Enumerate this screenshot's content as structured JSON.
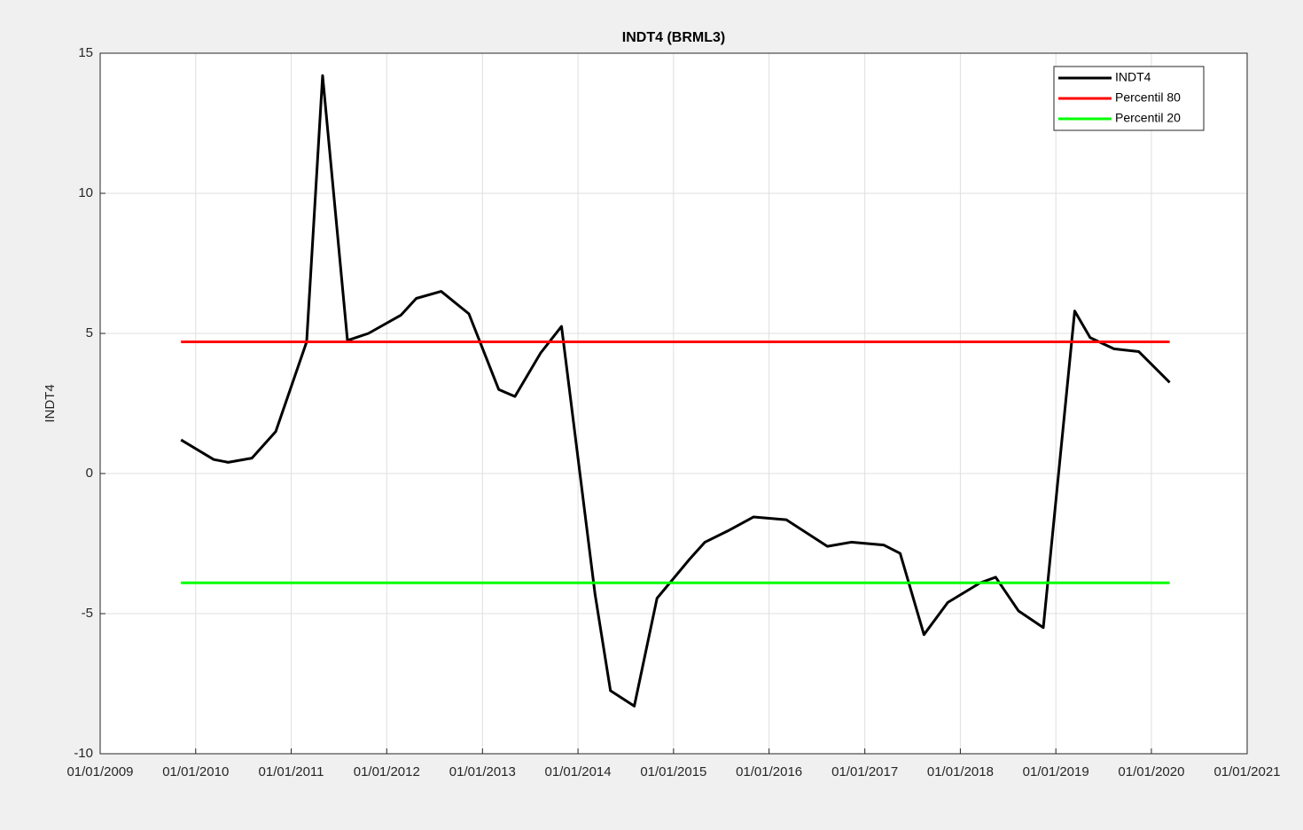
{
  "chart_data": {
    "type": "line",
    "title": "INDT4 (BRML3)",
    "y_label": "INDT4",
    "x": [
      "2009-11-06",
      "2010-03-11",
      "2010-05-05",
      "2010-08-04",
      "2010-11-03",
      "2011-03-01",
      "2011-05-01",
      "2011-08-04",
      "2011-10-23",
      "2012-02-24",
      "2012-04-23",
      "2012-07-27",
      "2012-11-10",
      "2013-03-04",
      "2013-05-05",
      "2013-08-11",
      "2013-10-30",
      "2014-03-07",
      "2014-05-05",
      "2014-08-04",
      "2014-10-30",
      "2015-03-04",
      "2015-05-01",
      "2015-07-27",
      "2015-11-03",
      "2016-03-07",
      "2016-08-11",
      "2016-11-10",
      "2017-03-14",
      "2017-05-16",
      "2017-08-15",
      "2017-11-14",
      "2018-03-18",
      "2018-05-16",
      "2018-08-11",
      "2018-11-14",
      "2019-03-14",
      "2019-05-12",
      "2019-08-11",
      "2019-11-14",
      "2020-03-11"
    ],
    "series": [
      {
        "name": "INDT4",
        "color": "#000000",
        "values": [
          1.2,
          0.5,
          0.4,
          0.55,
          1.5,
          4.7,
          14.2,
          4.75,
          5.0,
          5.65,
          6.25,
          6.5,
          5.7,
          3.0,
          2.75,
          4.3,
          5.25,
          -4.3,
          -7.75,
          -8.3,
          -4.45,
          -3.05,
          -2.45,
          -2.05,
          -1.55,
          -1.65,
          -2.6,
          -2.45,
          -2.55,
          -2.85,
          -5.75,
          -4.6,
          -3.9,
          -3.7,
          -4.9,
          -5.5,
          5.8,
          4.85,
          4.45,
          4.35,
          3.25
        ]
      },
      {
        "name": "Percentil 80",
        "color": "#ff0000",
        "x": [
          "2009-11-06",
          "2020-03-11"
        ],
        "values": [
          4.7,
          4.7
        ]
      },
      {
        "name": "Percentil 20",
        "color": "#00ff00",
        "x": [
          "2009-11-06",
          "2020-03-11"
        ],
        "values": [
          -3.9,
          -3.9
        ]
      }
    ],
    "xlim": [
      "2009-01-01",
      "2021-01-01"
    ],
    "xticks": [
      {
        "value": "2009-01-01",
        "label": "01/01/2009"
      },
      {
        "value": "2010-01-01",
        "label": "01/01/2010"
      },
      {
        "value": "2011-01-01",
        "label": "01/01/2011"
      },
      {
        "value": "2012-01-01",
        "label": "01/01/2012"
      },
      {
        "value": "2013-01-01",
        "label": "01/01/2013"
      },
      {
        "value": "2014-01-01",
        "label": "01/01/2014"
      },
      {
        "value": "2015-01-01",
        "label": "01/01/2015"
      },
      {
        "value": "2016-01-01",
        "label": "01/01/2016"
      },
      {
        "value": "2017-01-01",
        "label": "01/01/2017"
      },
      {
        "value": "2018-01-01",
        "label": "01/01/2018"
      },
      {
        "value": "2019-01-01",
        "label": "01/01/2019"
      },
      {
        "value": "2020-01-01",
        "label": "01/01/2020"
      },
      {
        "value": "2021-01-01",
        "label": "01/01/2021"
      }
    ],
    "ylim": [
      -10,
      15
    ],
    "yticks": [
      -10,
      -5,
      0,
      5,
      10,
      15
    ],
    "grid": true,
    "legend": "top-right"
  }
}
